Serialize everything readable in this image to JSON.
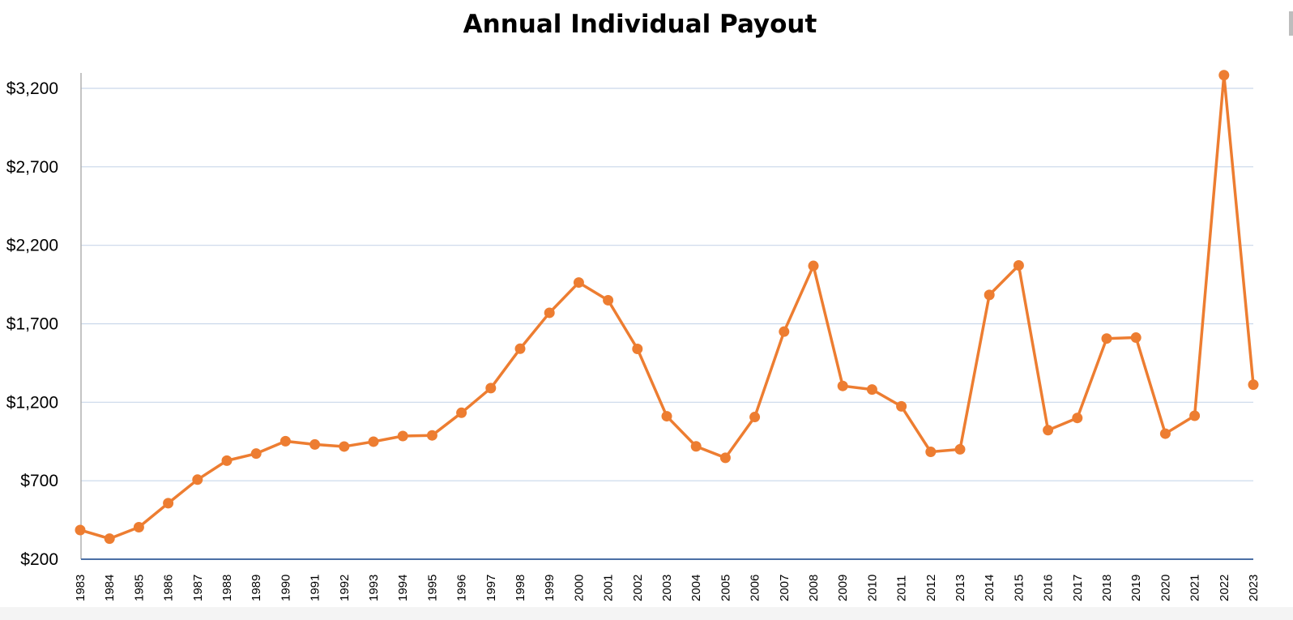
{
  "chart_data": {
    "type": "line",
    "title": "Annual Individual Payout",
    "xlabel": "",
    "ylabel": "",
    "ylim": [
      200,
      3200
    ],
    "yticks": [
      200,
      700,
      1200,
      1700,
      2200,
      2700,
      3200
    ],
    "ytick_labels": [
      "$200",
      "$700",
      "$1,200",
      "$1,700",
      "$2,200",
      "$2,700",
      "$3,200"
    ],
    "categories": [
      "1983",
      "1984",
      "1985",
      "1986",
      "1987",
      "1988",
      "1989",
      "1990",
      "1991",
      "1992",
      "1993",
      "1994",
      "1995",
      "1996",
      "1997",
      "1998",
      "1999",
      "2000",
      "2001",
      "2002",
      "2003",
      "2004",
      "2005",
      "2006",
      "2007",
      "2008",
      "2009",
      "2010",
      "2011",
      "2012",
      "2013",
      "2014",
      "2015",
      "2016",
      "2017",
      "2018",
      "2019",
      "2020",
      "2021",
      "2022",
      "2023"
    ],
    "series": [
      {
        "values": [
          386,
          331,
          404,
          557,
          707,
          828,
          873,
          952,
          931,
          918,
          949,
          985,
          989,
          1133,
          1290,
          1541,
          1770,
          1963,
          1850,
          1540,
          1111,
          919,
          846,
          1106,
          1650,
          2069,
          1304,
          1281,
          1174,
          884,
          900,
          1884,
          2072,
          1022,
          1100,
          1606,
          1612,
          1000,
          1114,
          3284,
          1312
        ],
        "color": "#ED7D31"
      }
    ],
    "grid": true,
    "legend": "none"
  }
}
